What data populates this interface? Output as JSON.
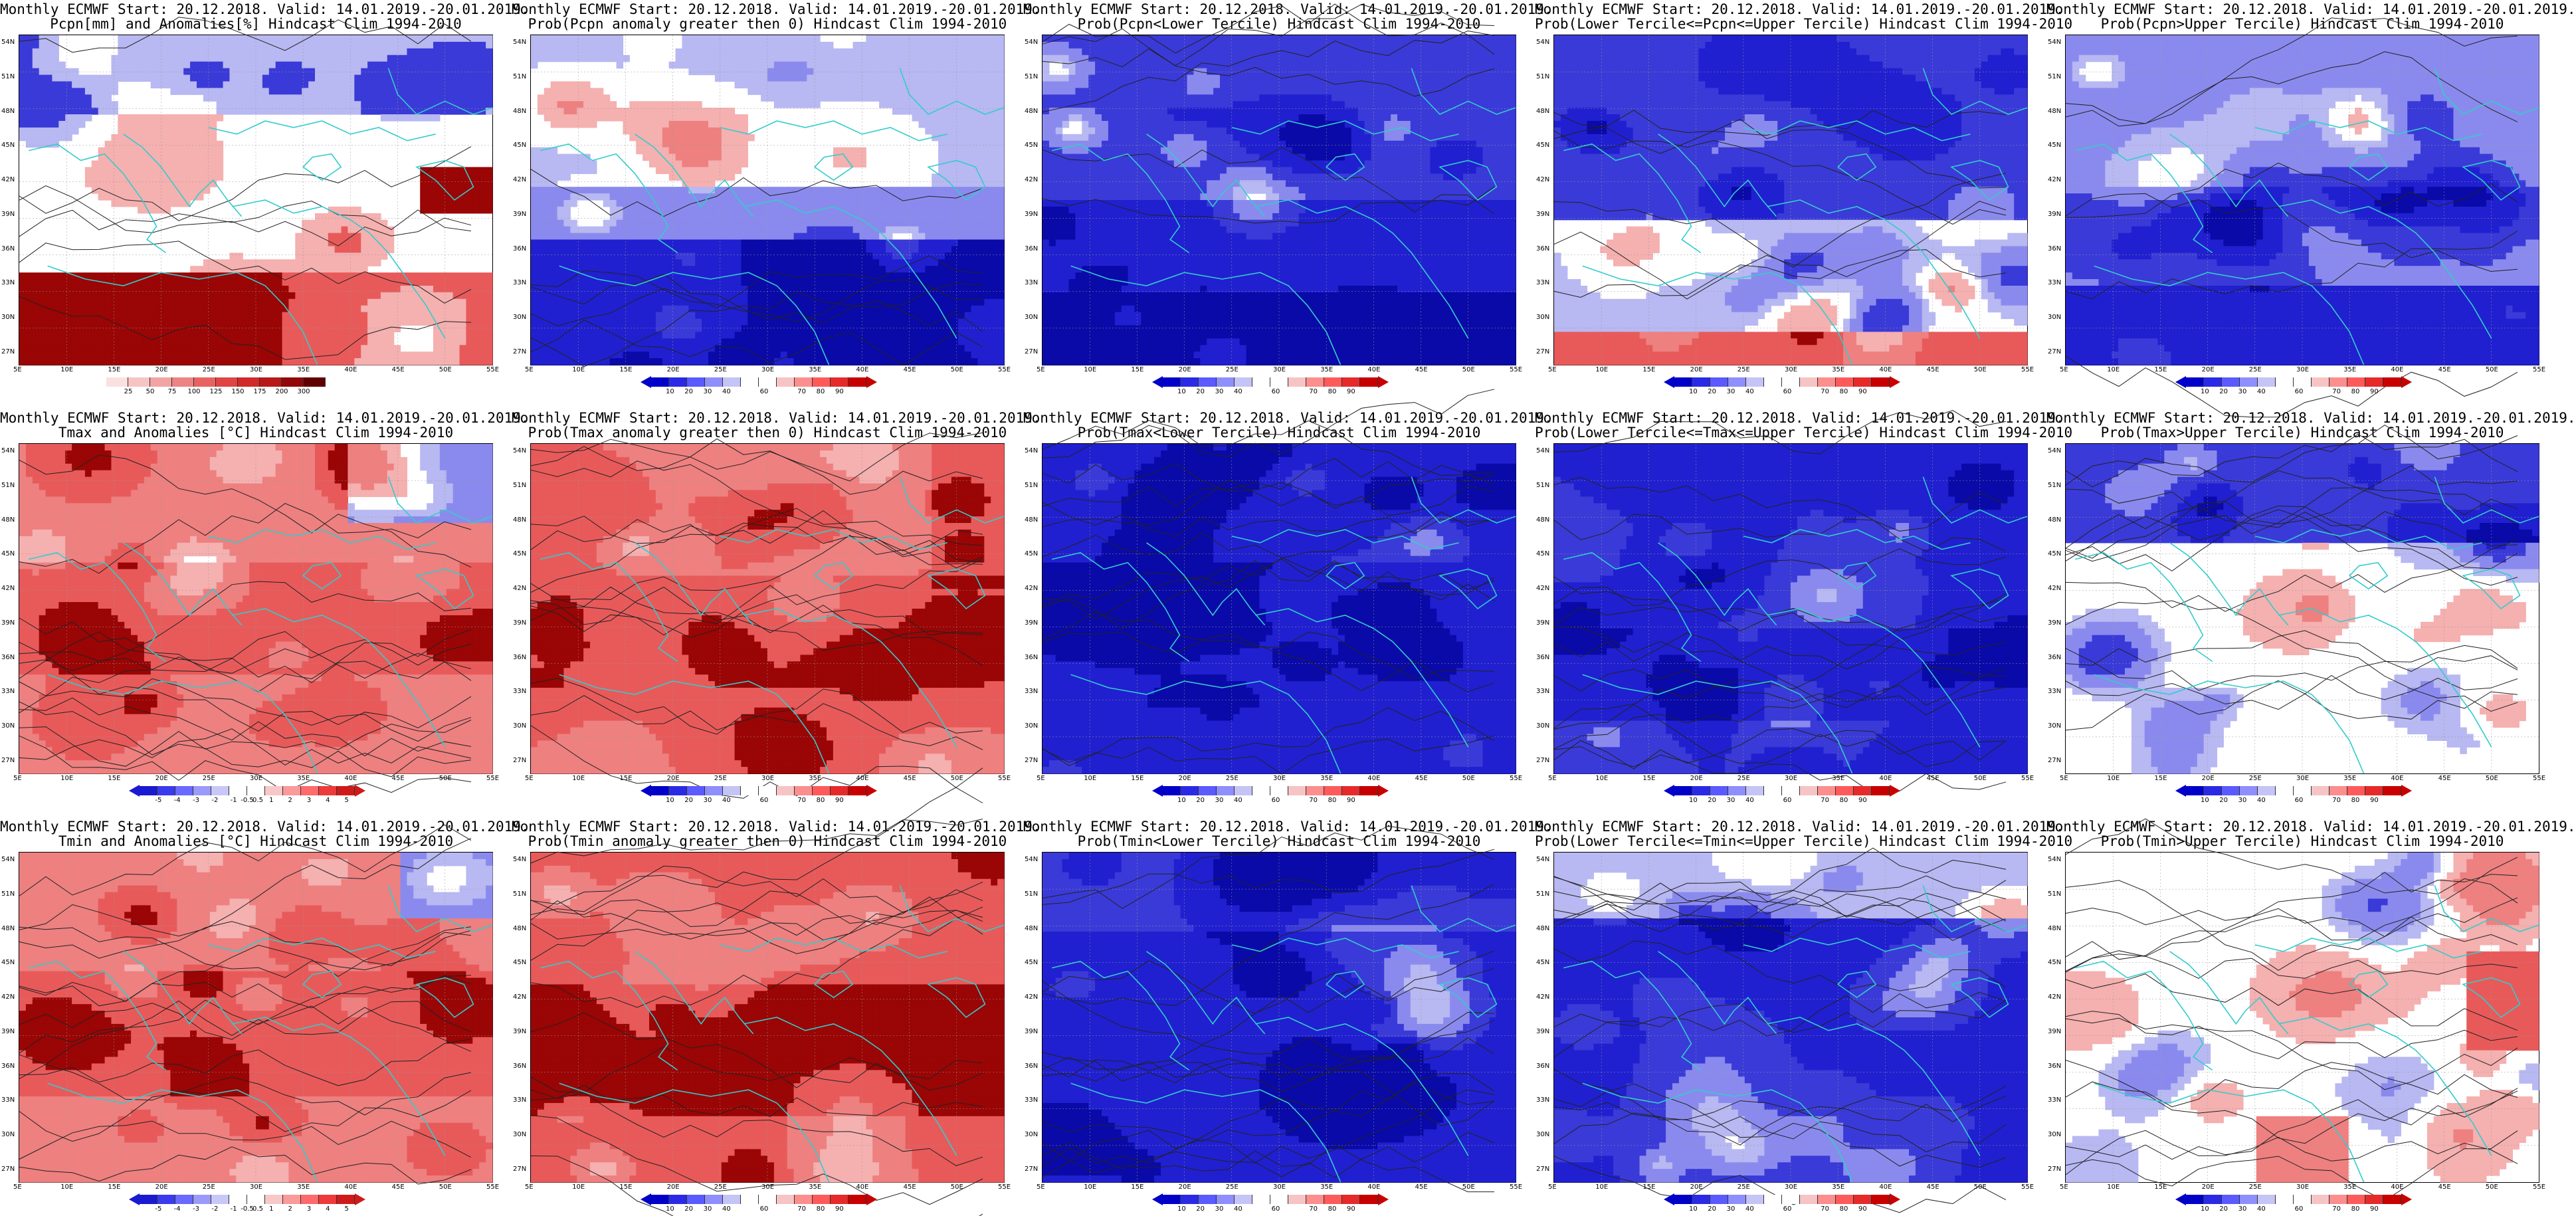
{
  "figure": {
    "rows": [
      {
        "variable": "Pcpn",
        "panels": [
          {
            "title1": "Monthly ECMWF Start: 20.12.2018. Valid: 14.01.2019.-20.01.2019.",
            "title2": "Pcpn[mm] and Anomalies[%] Hindcast Clim 1994-2010",
            "type": "anomaly",
            "pattern": "pcpn_anom"
          },
          {
            "title1": "Monthly ECMWF Start: 20.12.2018. Valid: 14.01.2019.-20.01.2019.",
            "title2": "Prob(Pcpn anomaly greater then 0) Hindcast Clim 1994-2010",
            "type": "prob",
            "pattern": "pcpn_pos"
          },
          {
            "title1": "Monthly ECMWF Start: 20.12.2018. Valid: 14.01.2019.-20.01.2019.",
            "title2": "Prob(Pcpn<Lower Tercile) Hindcast Clim 1994-2010",
            "type": "prob",
            "pattern": "pcpn_low"
          },
          {
            "title1": "Monthly ECMWF Start: 20.12.2018. Valid: 14.01.2019.-20.01.2019.",
            "title2": "Prob(Lower Tercile<=Pcpn<=Upper Tercile) Hindcast Clim 1994-2010",
            "type": "prob",
            "pattern": "pcpn_mid"
          },
          {
            "title1": "Monthly ECMWF Start: 20.12.2018. Valid: 14.01.2019.-20.01.2019.",
            "title2": "Prob(Pcpn>Upper Tercile) Hindcast Clim 1994-2010",
            "type": "prob",
            "pattern": "pcpn_up"
          }
        ]
      },
      {
        "variable": "Tmax",
        "panels": [
          {
            "title1": "Monthly ECMWF Start: 20.12.2018. Valid: 14.01.2019.-20.01.2019.",
            "title2": "Tmax and Anomalies [°C] Hindcast Clim 1994-2010",
            "type": "tanom",
            "pattern": "tmax_anom"
          },
          {
            "title1": "Monthly ECMWF Start: 20.12.2018. Valid: 14.01.2019.-20.01.2019.",
            "title2": "Prob(Tmax anomaly greater then 0) Hindcast Clim 1994-2010",
            "type": "prob",
            "pattern": "tmax_pos"
          },
          {
            "title1": "Monthly ECMWF Start: 20.12.2018. Valid: 14.01.2019.-20.01.2019.",
            "title2": "Prob(Tmax<Lower Tercile) Hindcast Clim 1994-2010",
            "type": "prob",
            "pattern": "tmax_low"
          },
          {
            "title1": "Monthly ECMWF Start: 20.12.2018. Valid: 14.01.2019.-20.01.2019.",
            "title2": "Prob(Lower Tercile<=Tmax<=Upper Tercile) Hindcast Clim 1994-2010",
            "type": "prob",
            "pattern": "tmax_mid"
          },
          {
            "title1": "Monthly ECMWF Start: 20.12.2018. Valid: 14.01.2019.-20.01.2019.",
            "title2": "Prob(Tmax>Upper Tercile) Hindcast Clim 1994-2010",
            "type": "prob",
            "pattern": "tmax_up"
          }
        ]
      },
      {
        "variable": "Tmin",
        "panels": [
          {
            "title1": "Monthly ECMWF Start: 20.12.2018. Valid: 14.01.2019.-20.01.2019.",
            "title2": "Tmin and Anomalies [°C] Hindcast Clim 1994-2010",
            "type": "tanom",
            "pattern": "tmin_anom"
          },
          {
            "title1": "Monthly ECMWF Start: 20.12.2018. Valid: 14.01.2019.-20.01.2019.",
            "title2": "Prob(Tmin anomaly greater then 0) Hindcast Clim 1994-2010",
            "type": "prob",
            "pattern": "tmin_pos"
          },
          {
            "title1": "Monthly ECMWF Start: 20.12.2018. Valid: 14.01.2019.-20.01.2019.",
            "title2": "Prob(Tmin<Lower Tercile) Hindcast Clim 1994-2010",
            "type": "prob",
            "pattern": "tmin_low"
          },
          {
            "title1": "Monthly ECMWF Start: 20.12.2018. Valid: 14.01.2019.-20.01.2019.",
            "title2": "Prob(Lower Tercile<=Tmin<=Upper Tercile) Hindcast Clim 1994-2010",
            "type": "prob",
            "pattern": "tmin_mid"
          },
          {
            "title1": "Monthly ECMWF Start: 20.12.2018. Valid: 14.01.2019.-20.01.2019.",
            "title2": "Prob(Tmin>Upper Tercile) Hindcast Clim 1994-2010",
            "type": "prob",
            "pattern": "tmin_up"
          }
        ]
      }
    ],
    "lat_labels": [
      "54N",
      "51N",
      "48N",
      "45N",
      "42N",
      "39N",
      "36N",
      "33N",
      "30N",
      "27N"
    ],
    "lon_labels": [
      "5E",
      "10E",
      "15E",
      "20E",
      "25E",
      "30E",
      "35E",
      "40E",
      "45E",
      "50E",
      "55E"
    ],
    "colorbars": {
      "anomaly": {
        "colors": [
          "#fbe0e0",
          "#f7c4c4",
          "#f2a3a3",
          "#ed8383",
          "#e86262",
          "#e04444",
          "#d02a2a",
          "#b81818",
          "#900808",
          "#600000"
        ],
        "ticks": [
          "25",
          "50",
          "75",
          "100",
          "125",
          "150",
          "175",
          "200",
          "300"
        ]
      },
      "prob": {
        "colors": [
          "#0000c8",
          "#2a2ae6",
          "#5a5aff",
          "#8e8efc",
          "#c4c4f6",
          "#ffffff",
          "#ffffff",
          "#f6c4c4",
          "#fc8e8e",
          "#ff5a5a",
          "#e62a2a",
          "#c80000"
        ],
        "ticks": [
          "10",
          "20",
          "30",
          "40",
          "60",
          "70",
          "80",
          "90"
        ]
      },
      "tanom": {
        "colors": [
          "#1a1ad0",
          "#3a3aee",
          "#6a6aff",
          "#9a9afb",
          "#c8c8f8",
          "#ffffff",
          "#ffffff",
          "#f8c8c8",
          "#fb9a9a",
          "#ff6a6a",
          "#ee3a3a",
          "#d01a1a"
        ],
        "ticks": [
          "-5",
          "-4",
          "-3",
          "-2",
          "-1",
          "-0.5",
          "0.5",
          "1",
          "2",
          "3",
          "4",
          "5"
        ]
      }
    },
    "palette": {
      "coast": "#33cccc",
      "contour": "#222222",
      "strong_blue": "#0a0aa8",
      "mid_blue": "#3a3ad8",
      "light_blue": "#b8b8f2",
      "white": "#ffffff",
      "light_red": "#f5b0b0",
      "mid_red": "#e85a5a",
      "dark_red": "#9a0505"
    }
  }
}
